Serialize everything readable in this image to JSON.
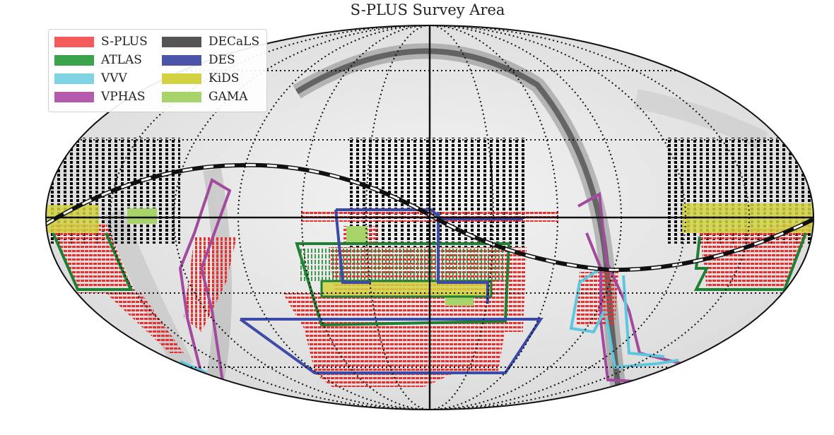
{
  "title": "S-PLUS Survey Area",
  "legend": {
    "placement": "top-left",
    "entries": [
      {
        "name": "S-PLUS",
        "color": "#f45b5b"
      },
      {
        "name": "ATLAS",
        "color": "#3aa34c"
      },
      {
        "name": "VVV",
        "color": "#7fd3e4"
      },
      {
        "name": "VPHAS",
        "color": "#b65aae"
      },
      {
        "name": "DECaLS",
        "color": "#555555"
      },
      {
        "name": "DES",
        "color": "#4b54a8"
      },
      {
        "name": "KiDS",
        "color": "#d2d242"
      },
      {
        "name": "GAMA",
        "color": "#a6d46a"
      }
    ]
  },
  "map": {
    "projection": "mollweide",
    "grid": "dotted",
    "background": "all-sky dust extinction map (grayscale)",
    "curves": [
      "galactic plane (black/white dashed)",
      "ecliptic band (dark dust lane)"
    ]
  }
}
